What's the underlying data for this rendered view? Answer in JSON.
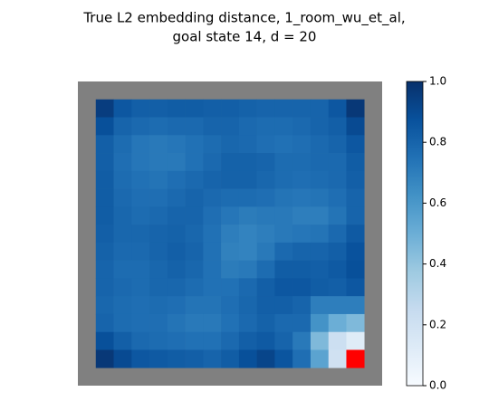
{
  "chart_data": {
    "type": "heatmap",
    "title": [
      "True L2 embedding distance, 1_room_wu_et_al,",
      "goal state 14, d = 20"
    ],
    "colormap": "Blues",
    "wall_color": "#808080",
    "goal_color": "#ff0000",
    "goal_cell": [
      14,
      14
    ],
    "values": [
      [
        0.95,
        0.85,
        0.82,
        0.82,
        0.83,
        0.83,
        0.82,
        0.82,
        0.81,
        0.8,
        0.8,
        0.8,
        0.8,
        0.85,
        0.97
      ],
      [
        0.88,
        0.8,
        0.78,
        0.77,
        0.78,
        0.78,
        0.8,
        0.8,
        0.78,
        0.77,
        0.77,
        0.78,
        0.8,
        0.82,
        0.9
      ],
      [
        0.82,
        0.77,
        0.73,
        0.72,
        0.73,
        0.75,
        0.77,
        0.79,
        0.78,
        0.76,
        0.75,
        0.76,
        0.78,
        0.8,
        0.85
      ],
      [
        0.82,
        0.76,
        0.73,
        0.72,
        0.72,
        0.75,
        0.78,
        0.81,
        0.81,
        0.8,
        0.77,
        0.77,
        0.78,
        0.78,
        0.83
      ],
      [
        0.83,
        0.77,
        0.75,
        0.74,
        0.76,
        0.78,
        0.8,
        0.81,
        0.81,
        0.79,
        0.77,
        0.76,
        0.77,
        0.78,
        0.82
      ],
      [
        0.83,
        0.78,
        0.76,
        0.76,
        0.78,
        0.8,
        0.78,
        0.77,
        0.77,
        0.76,
        0.74,
        0.73,
        0.74,
        0.76,
        0.8
      ],
      [
        0.83,
        0.79,
        0.77,
        0.78,
        0.8,
        0.8,
        0.76,
        0.73,
        0.71,
        0.72,
        0.72,
        0.7,
        0.7,
        0.74,
        0.8
      ],
      [
        0.82,
        0.79,
        0.79,
        0.8,
        0.81,
        0.79,
        0.75,
        0.7,
        0.68,
        0.7,
        0.72,
        0.73,
        0.74,
        0.78,
        0.84
      ],
      [
        0.81,
        0.78,
        0.78,
        0.8,
        0.82,
        0.8,
        0.75,
        0.69,
        0.68,
        0.72,
        0.78,
        0.8,
        0.8,
        0.82,
        0.87
      ],
      [
        0.8,
        0.77,
        0.77,
        0.79,
        0.81,
        0.79,
        0.75,
        0.71,
        0.72,
        0.77,
        0.83,
        0.83,
        0.82,
        0.84,
        0.88
      ],
      [
        0.8,
        0.78,
        0.77,
        0.79,
        0.79,
        0.77,
        0.75,
        0.75,
        0.78,
        0.82,
        0.85,
        0.85,
        0.83,
        0.82,
        0.85
      ],
      [
        0.79,
        0.77,
        0.76,
        0.77,
        0.76,
        0.74,
        0.74,
        0.76,
        0.79,
        0.82,
        0.82,
        0.8,
        0.7,
        0.7,
        0.7
      ],
      [
        0.8,
        0.77,
        0.76,
        0.76,
        0.74,
        0.72,
        0.72,
        0.75,
        0.78,
        0.81,
        0.78,
        0.78,
        0.62,
        0.5,
        0.45
      ],
      [
        0.88,
        0.82,
        0.78,
        0.77,
        0.76,
        0.75,
        0.75,
        0.78,
        0.82,
        0.84,
        0.8,
        0.72,
        0.45,
        0.22,
        0.12
      ],
      [
        0.97,
        0.9,
        0.85,
        0.84,
        0.83,
        0.82,
        0.8,
        0.83,
        0.88,
        0.92,
        0.86,
        0.76,
        0.55,
        0.2,
        null
      ]
    ],
    "clim": [
      0,
      1
    ],
    "cticks": [
      {
        "value": 0,
        "label": "0.0"
      },
      {
        "value": 0.2,
        "label": "0.2"
      },
      {
        "value": 0.4,
        "label": "0.4"
      },
      {
        "value": 0.6,
        "label": "0.6"
      },
      {
        "value": 0.8,
        "label": "0.8"
      },
      {
        "value": 1,
        "label": "1.0"
      }
    ]
  }
}
